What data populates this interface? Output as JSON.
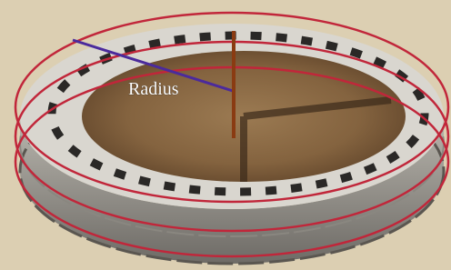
{
  "labels": {
    "radius": "Radius"
  }
}
